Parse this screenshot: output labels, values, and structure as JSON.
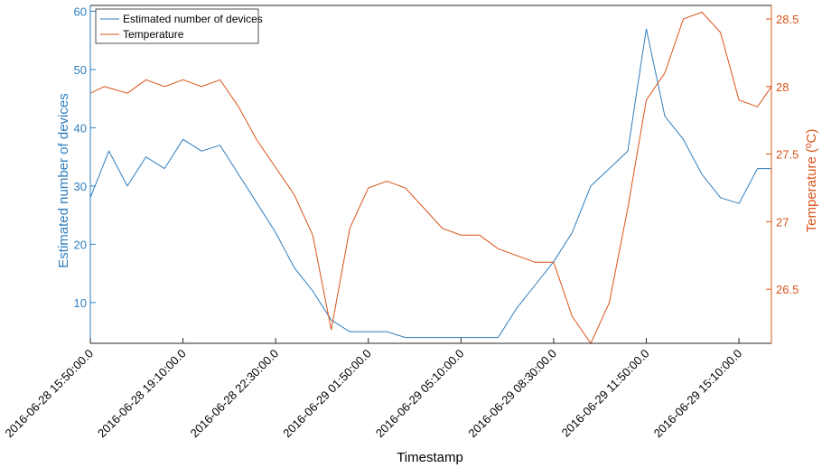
{
  "chart_data": {
    "type": "line",
    "title": "",
    "xlabel": "Timestamp",
    "ylabel_left": "Estimated number of devices",
    "ylabel_right": "Temperature (ºC)",
    "grid": false,
    "legend_position": "top-left",
    "colors": {
      "devices": "#2e7ebf",
      "temperature": "#d9541a",
      "axis": "#262626"
    },
    "x_ticks": [
      "2016-06-28 15:50:00.0",
      "2016-06-28 19:10:00.0",
      "2016-06-28 22:30:00.0",
      "2016-06-29 01:50:00.0",
      "2016-06-29 05:10:00.0",
      "2016-06-29 08:30:00.0",
      "2016-06-29 11:50:00.0",
      "2016-06-29 15:10:00.0"
    ],
    "x_range": [
      "2016-06-28 15:50:00.0",
      "2016-06-29 16:20:00.0"
    ],
    "y_left": {
      "ticks": [
        "10",
        "20",
        "30",
        "40",
        "50",
        "60"
      ],
      "range": [
        3,
        61
      ]
    },
    "y_right": {
      "ticks": [
        "26.5",
        "27",
        "27.5",
        "28",
        "28.5"
      ],
      "range": [
        26.1,
        28.6
      ]
    },
    "series": [
      {
        "name": "Estimated number of devices",
        "axis": "left",
        "x": [
          "2016-06-28 15:50",
          "2016-06-28 16:30",
          "2016-06-28 17:10",
          "2016-06-28 17:50",
          "2016-06-28 18:30",
          "2016-06-28 19:10",
          "2016-06-28 19:50",
          "2016-06-28 20:30",
          "2016-06-28 21:10",
          "2016-06-28 21:50",
          "2016-06-28 22:30",
          "2016-06-28 23:10",
          "2016-06-28 23:50",
          "2016-06-29 00:30",
          "2016-06-29 01:10",
          "2016-06-29 01:50",
          "2016-06-29 02:30",
          "2016-06-29 03:10",
          "2016-06-29 03:50",
          "2016-06-29 04:30",
          "2016-06-29 05:10",
          "2016-06-29 05:50",
          "2016-06-29 06:30",
          "2016-06-29 07:10",
          "2016-06-29 07:50",
          "2016-06-29 08:30",
          "2016-06-29 09:10",
          "2016-06-29 09:50",
          "2016-06-29 10:30",
          "2016-06-29 11:10",
          "2016-06-29 11:50",
          "2016-06-29 12:30",
          "2016-06-29 13:10",
          "2016-06-29 13:50",
          "2016-06-29 14:30",
          "2016-06-29 15:10",
          "2016-06-29 15:50",
          "2016-06-29 16:20"
        ],
        "values": [
          28,
          36,
          30,
          35,
          33,
          38,
          36,
          37,
          32,
          27,
          22,
          16,
          12,
          7,
          5,
          5,
          5,
          4,
          4,
          4,
          4,
          4,
          4,
          9,
          13,
          17,
          22,
          30,
          33,
          36,
          57,
          42,
          38,
          32,
          28,
          27,
          33,
          33
        ]
      },
      {
        "name": "Temperature",
        "axis": "right",
        "x": [
          "2016-06-28 15:50",
          "2016-06-28 16:20",
          "2016-06-28 17:10",
          "2016-06-28 17:50",
          "2016-06-28 18:30",
          "2016-06-28 19:10",
          "2016-06-28 19:50",
          "2016-06-28 20:30",
          "2016-06-28 21:10",
          "2016-06-28 21:50",
          "2016-06-28 22:30",
          "2016-06-28 23:10",
          "2016-06-28 23:50",
          "2016-06-29 00:30",
          "2016-06-29 01:10",
          "2016-06-29 01:50",
          "2016-06-29 02:30",
          "2016-06-29 03:10",
          "2016-06-29 03:50",
          "2016-06-29 04:30",
          "2016-06-29 05:10",
          "2016-06-29 05:50",
          "2016-06-29 06:30",
          "2016-06-29 07:10",
          "2016-06-29 07:50",
          "2016-06-29 08:30",
          "2016-06-29 09:10",
          "2016-06-29 09:50",
          "2016-06-29 10:30",
          "2016-06-29 11:10",
          "2016-06-29 11:50",
          "2016-06-29 12:30",
          "2016-06-29 13:10",
          "2016-06-29 13:50",
          "2016-06-29 14:30",
          "2016-06-29 15:10",
          "2016-06-29 15:50",
          "2016-06-29 16:20"
        ],
        "values": [
          27.95,
          28.0,
          27.95,
          28.05,
          28.0,
          28.05,
          28.0,
          28.05,
          27.85,
          27.6,
          27.4,
          27.2,
          26.9,
          26.2,
          26.95,
          27.25,
          27.3,
          27.25,
          27.1,
          26.95,
          26.9,
          26.9,
          26.8,
          26.75,
          26.7,
          26.7,
          26.3,
          26.1,
          26.4,
          27.1,
          27.9,
          28.1,
          28.5,
          28.55,
          28.4,
          27.9,
          27.85,
          28.0
        ]
      }
    ]
  }
}
